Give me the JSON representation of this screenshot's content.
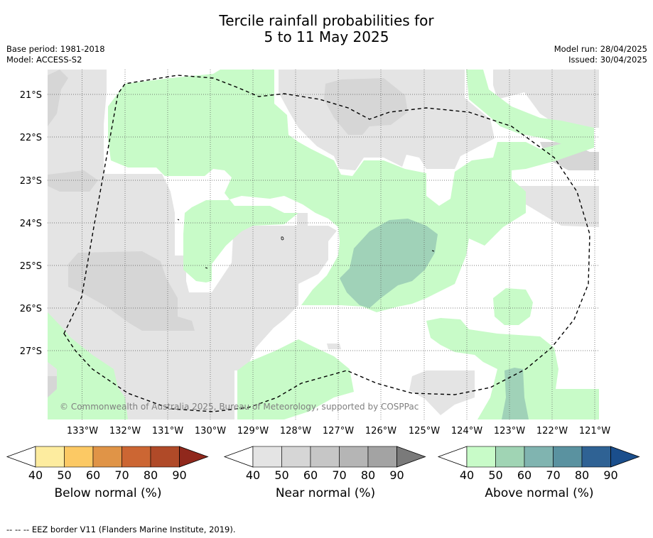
{
  "title_line1": "Tercile rainfall probabilities for",
  "title_line2": "5 to 11 May 2025",
  "base_period": "Base period: 1981-2018",
  "model": "Model: ACCESS-S2",
  "model_run": "Model run: 28/04/2025",
  "issued": "Issued: 30/04/2025",
  "copyright": "© Commonwealth of Australia 2025, Bureau of Meteorology, supported by COSPPac",
  "footnote": "--  --  -- EEZ border V11 (Flanders Marine Institute, 2019).",
  "map": {
    "lat_labels": [
      "21°S",
      "22°S",
      "23°S",
      "24°S",
      "25°S",
      "26°S",
      "27°S"
    ],
    "lon_labels": [
      "133°W",
      "132°W",
      "131°W",
      "130°W",
      "129°W",
      "128°W",
      "127°W",
      "126°W",
      "125°W",
      "124°W",
      "123°W",
      "122°W",
      "121°W"
    ],
    "gridlines": true,
    "colors": {
      "background": "#ffffff",
      "near_normal_40": "#e4e4e4",
      "near_normal_50": "#d6d6d6",
      "above_normal_40": "#c8fbc8",
      "above_normal_50": "#a0d2b8",
      "eez_border": "#000000"
    }
  },
  "colorbars": [
    {
      "label": "Below normal (%)",
      "ticks": [
        "40",
        "50",
        "60",
        "70",
        "80",
        "90"
      ],
      "colors": [
        "#ffffff",
        "#fdec9f",
        "#fcc964",
        "#e09447",
        "#cc6633",
        "#b04a28",
        "#90281c"
      ]
    },
    {
      "label": "Near normal (%)",
      "ticks": [
        "40",
        "50",
        "60",
        "70",
        "80",
        "90"
      ],
      "colors": [
        "#ffffff",
        "#e4e4e4",
        "#d6d6d6",
        "#c6c6c6",
        "#b5b5b5",
        "#a3a3a3",
        "#7a7a7a"
      ]
    },
    {
      "label": "Above normal (%)",
      "ticks": [
        "40",
        "50",
        "60",
        "70",
        "80",
        "90"
      ],
      "colors": [
        "#ffffff",
        "#c8fbc8",
        "#a0d4b4",
        "#80b4b0",
        "#5a92a0",
        "#2f6294",
        "#1a4e8c"
      ]
    }
  ]
}
